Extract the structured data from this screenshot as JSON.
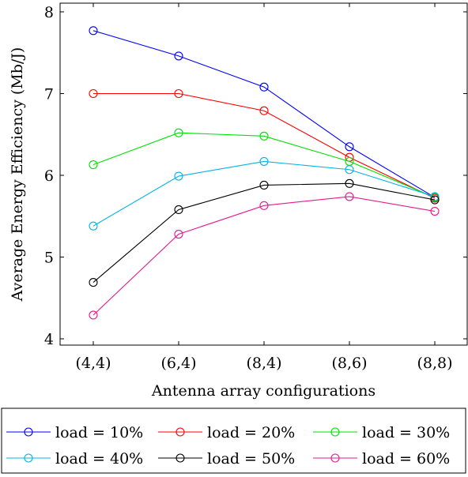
{
  "chart_data": {
    "type": "line",
    "title": "",
    "xlabel": "Antenna array configurations",
    "ylabel": "Average Energy Efficiency (Mb/J)",
    "categories": [
      "(4,4)",
      "(6,4)",
      "(8,4)",
      "(8,6)",
      "(8,8)"
    ],
    "ylim": [
      4,
      8
    ],
    "yticks": [
      4,
      5,
      6,
      7,
      8
    ],
    "grid": false,
    "legend_position": "bottom",
    "series": [
      {
        "name": "load = 10%",
        "color": "#0000ff",
        "values": [
          7.77,
          7.46,
          7.08,
          6.35,
          5.73
        ]
      },
      {
        "name": "load = 20%",
        "color": "#ff0000",
        "values": [
          7.0,
          7.0,
          6.79,
          6.22,
          5.72
        ]
      },
      {
        "name": "load = 30%",
        "color": "#00e000",
        "values": [
          6.13,
          6.52,
          6.48,
          6.17,
          5.73
        ]
      },
      {
        "name": "load = 40%",
        "color": "#00b4e6",
        "values": [
          5.38,
          5.99,
          6.17,
          6.07,
          5.74
        ]
      },
      {
        "name": "load = 50%",
        "color": "#000000",
        "values": [
          4.69,
          5.58,
          5.88,
          5.9,
          5.7
        ]
      },
      {
        "name": "load = 60%",
        "color": "#e6198c",
        "values": [
          4.29,
          5.28,
          5.63,
          5.74,
          5.56
        ]
      }
    ]
  }
}
